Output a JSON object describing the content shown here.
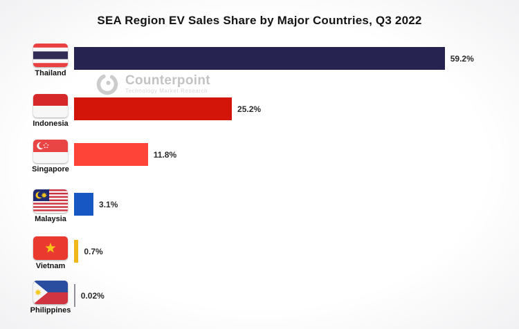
{
  "title": "SEA Region EV Sales Share by Major Countries, Q3 2022",
  "watermark": {
    "brand": "Counterpoint",
    "tagline": "Technology Market Research"
  },
  "chart_data": {
    "type": "bar",
    "orientation": "horizontal",
    "title": "SEA Region EV Sales Share by Major Countries, Q3 2022",
    "categories": [
      "Thailand",
      "Indonesia",
      "Singapore",
      "Malaysia",
      "Vietnam",
      "Philippines"
    ],
    "values": [
      59.2,
      25.2,
      11.8,
      3.1,
      0.7,
      0.02
    ],
    "value_labels": [
      "59.2%",
      "25.2%",
      "11.8%",
      "3.1%",
      "0.7%",
      "0.02%"
    ],
    "bar_colors": [
      "#272351",
      "#d21508",
      "#fe4338",
      "#1757c4",
      "#f0b81b",
      "#8f8f98"
    ],
    "flag_icons": [
      "thailand-flag",
      "indonesia-flag",
      "singapore-flag",
      "malaysia-flag",
      "vietnam-flag",
      "philippines-flag"
    ],
    "unit": "%",
    "xlim": [
      0,
      66
    ],
    "grid": "off",
    "legend": "none",
    "axis_labels": "none"
  }
}
